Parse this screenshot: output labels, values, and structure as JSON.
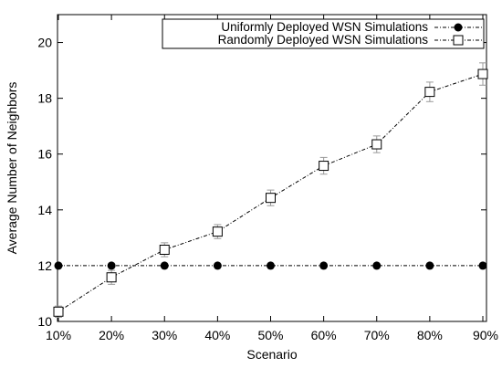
{
  "chart_data": {
    "type": "line",
    "title": "",
    "xlabel": "Scenario",
    "ylabel": "Average Number of Neighbors",
    "categories": [
      "10%",
      "20%",
      "30%",
      "40%",
      "50%",
      "60%",
      "70%",
      "80%",
      "90%"
    ],
    "ylim": [
      10,
      21
    ],
    "yticks": [
      10,
      12,
      14,
      16,
      18,
      20
    ],
    "grid": false,
    "legend_position": "top-right",
    "series": [
      {
        "name": "Uniformly Deployed WSN Simulations",
        "marker": "filled-circle",
        "line_style": "dash-dot",
        "color": "#000000",
        "values": [
          12,
          12,
          12,
          12,
          12,
          12,
          12,
          12,
          12
        ]
      },
      {
        "name": "Randomly Deployed WSN Simulations",
        "marker": "open-square",
        "line_style": "dash-dot",
        "color": "#000000",
        "error_bar_color": "#999999",
        "values": [
          10.35,
          11.58,
          12.57,
          13.22,
          14.43,
          15.58,
          16.35,
          18.23,
          18.87
        ],
        "errors": [
          0.2,
          0.25,
          0.25,
          0.25,
          0.28,
          0.3,
          0.3,
          0.35,
          0.4
        ]
      }
    ]
  }
}
